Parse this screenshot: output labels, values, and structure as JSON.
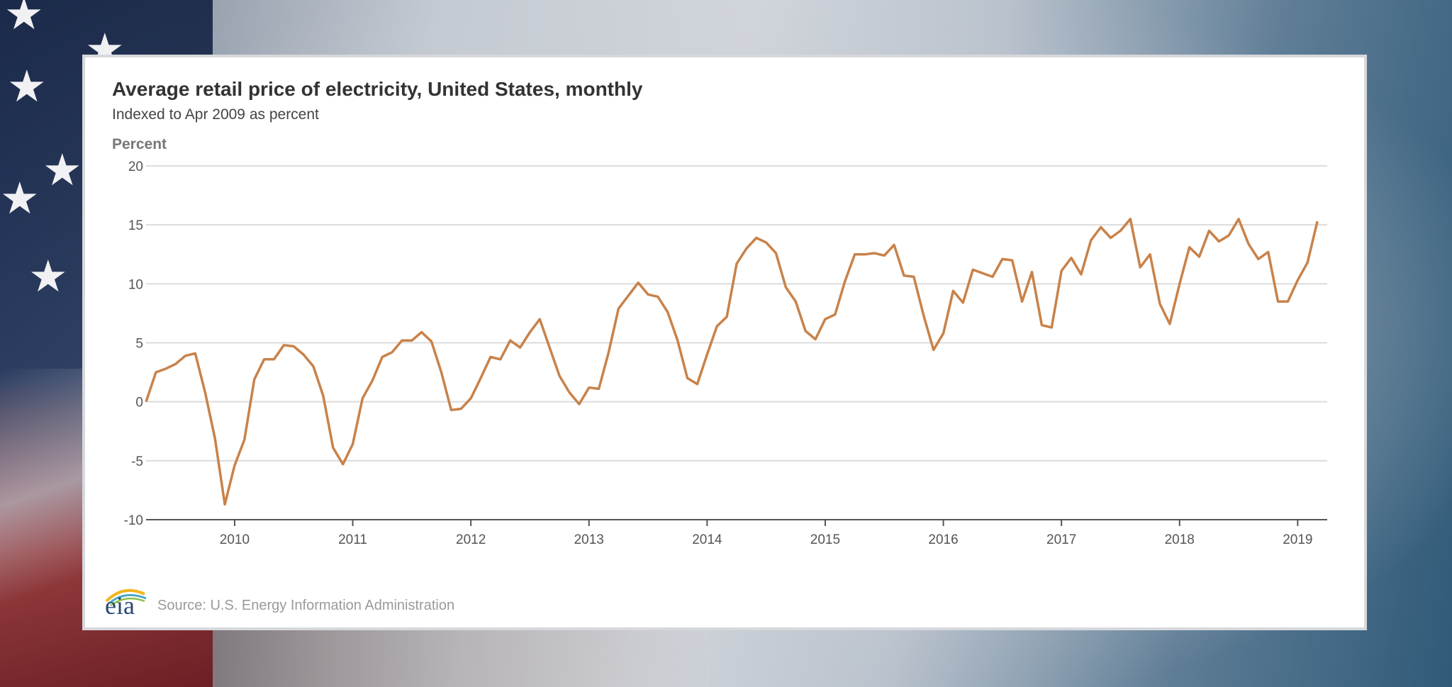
{
  "chart_data": {
    "type": "line",
    "title": "Average retail price of electricity, United States, monthly",
    "subtitle": "Indexed to Apr 2009 as percent",
    "ylabel": "Percent",
    "xlabel": "",
    "ylim": [
      -10,
      20
    ],
    "yticks": [
      20,
      15,
      10,
      5,
      0,
      -5,
      -10
    ],
    "xticks": [
      "2010",
      "2011",
      "2012",
      "2013",
      "2014",
      "2015",
      "2016",
      "2017",
      "2018",
      "2019"
    ],
    "x_start": "2009-04",
    "x_end": "2019-04",
    "grid": true,
    "color": "#c8824a",
    "series": [
      {
        "values": [
          0,
          2.5,
          2.8,
          3.2,
          3.9,
          4.1,
          0.8,
          -3.1,
          -8.7,
          -5.4,
          -3.2,
          1.9,
          3.6,
          3.6,
          4.8,
          4.7,
          4.0,
          3.0,
          0.5,
          -3.9,
          -5.3,
          -3.6,
          0.3,
          1.8,
          3.8,
          4.2,
          5.2,
          5.2,
          5.9,
          5.1,
          2.5,
          -0.7,
          -0.6,
          0.3,
          2.0,
          3.8,
          3.6,
          5.2,
          4.6,
          5.9,
          7.0,
          4.6,
          2.2,
          0.8,
          -0.2,
          1.2,
          1.1,
          4.2,
          7.9,
          9.0,
          10.1,
          9.1,
          8.9,
          7.6,
          5.2,
          2.0,
          1.5,
          4.0,
          6.4,
          7.2,
          11.7,
          13.0,
          13.9,
          13.5,
          12.6,
          9.7,
          8.5,
          6.0,
          5.3,
          7.0,
          7.4,
          10.2,
          12.5,
          12.5,
          12.6,
          12.4,
          13.3,
          10.7,
          10.6,
          7.3,
          4.4,
          5.8,
          9.4,
          8.4,
          11.2,
          10.9,
          10.6,
          12.1,
          12.0,
          8.5,
          11.0,
          6.5,
          6.3,
          11.1,
          12.2,
          10.8,
          13.7,
          14.8,
          13.9,
          14.5,
          15.5,
          11.4,
          12.5,
          8.3,
          6.6,
          10.0,
          13.1,
          12.3,
          14.5,
          13.6,
          14.1,
          15.5,
          13.4,
          12.1,
          12.7,
          8.5,
          8.5,
          10.3,
          11.8,
          15.3
        ]
      }
    ]
  },
  "footer": {
    "logo_text": "eia",
    "source": "Source: U.S. Energy Information Administration"
  },
  "background": {
    "icons": [
      "flag-star-icon"
    ]
  }
}
